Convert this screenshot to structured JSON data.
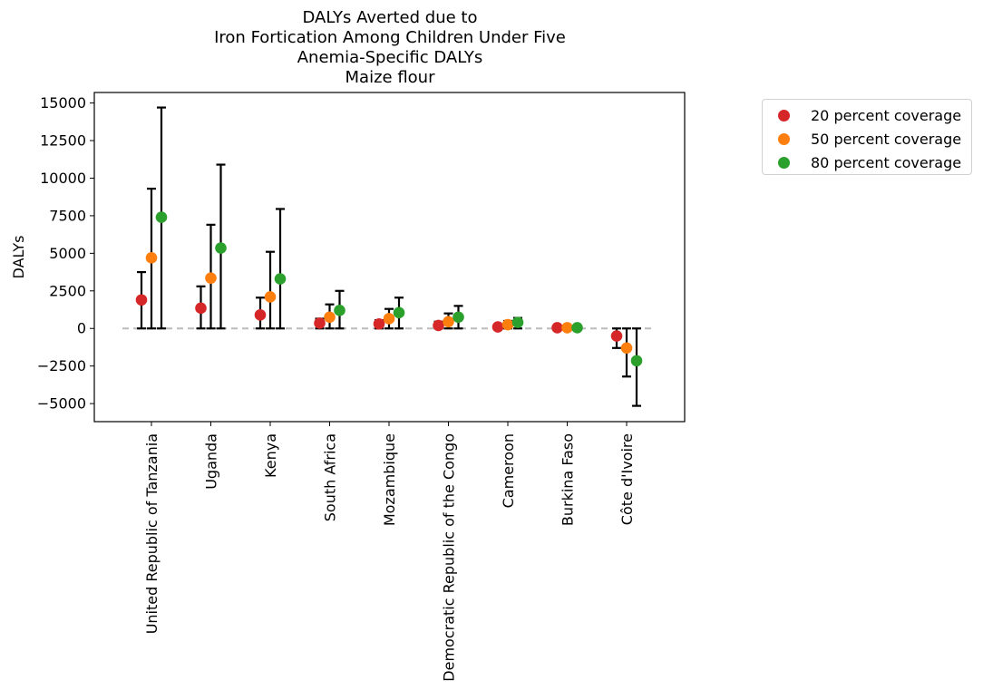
{
  "chart_data": {
    "type": "scatter",
    "title_lines": [
      "DALYs Averted due to",
      "Iron Fortication Among Children Under Five",
      "Anemia-Specific DALYs",
      "Maize flour"
    ],
    "xlabel": "",
    "ylabel": "DALYs",
    "ylim": [
      -6200,
      15700
    ],
    "yticks": [
      -5000,
      -2500,
      0,
      2500,
      5000,
      7500,
      10000,
      12500,
      15000
    ],
    "grid": false,
    "legend_position": "outside-right",
    "reference_line": {
      "y": 0,
      "style": "dashed",
      "color": "#bbbbbb"
    },
    "categories": [
      "United Republic of Tanzania",
      "Uganda",
      "Kenya",
      "South Africa",
      "Mozambique",
      "Democratic Republic of the Congo",
      "Cameroon",
      "Burkina Faso",
      "Côte d'Ivoire"
    ],
    "series": [
      {
        "name": "20 percent coverage",
        "color": "#d62728",
        "values": [
          1900,
          1350,
          900,
          350,
          300,
          200,
          100,
          50,
          -500
        ],
        "lower": [
          0,
          0,
          0,
          0,
          0,
          0,
          0,
          0,
          -1300
        ],
        "upper": [
          3750,
          2800,
          2050,
          650,
          550,
          450,
          200,
          100,
          0
        ]
      },
      {
        "name": "50 percent coverage",
        "color": "#ff7f0e",
        "values": [
          4700,
          3350,
          2100,
          750,
          650,
          450,
          250,
          50,
          -1300
        ],
        "lower": [
          0,
          0,
          0,
          0,
          0,
          0,
          0,
          0,
          -3200
        ],
        "upper": [
          9300,
          6900,
          5100,
          1600,
          1300,
          1000,
          500,
          100,
          0
        ]
      },
      {
        "name": "80 percent coverage",
        "color": "#2ca02c",
        "values": [
          7400,
          5350,
          3300,
          1200,
          1050,
          750,
          400,
          50,
          -2150
        ],
        "lower": [
          0,
          0,
          0,
          0,
          0,
          0,
          0,
          0,
          -5150
        ],
        "upper": [
          14700,
          10900,
          7950,
          2500,
          2050,
          1500,
          700,
          100,
          0
        ]
      }
    ]
  }
}
